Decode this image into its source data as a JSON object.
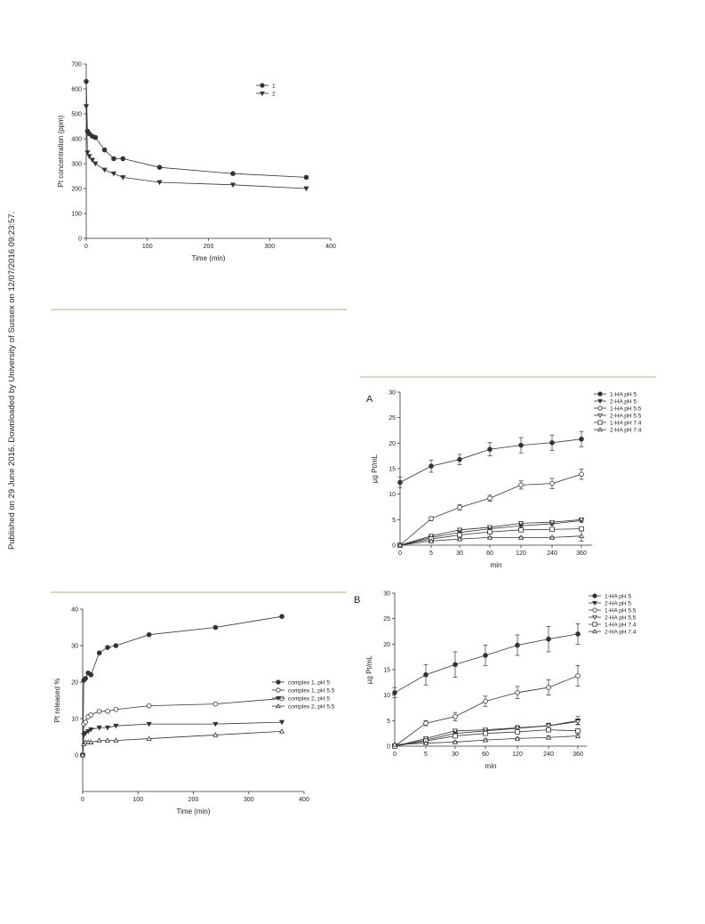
{
  "side_note": "Published on 29 June 2016. Downloaded by University of Sussex on 12/07/2016 09:23:57.",
  "colors": {
    "line": "#333333",
    "rule": "#d9d6c6"
  },
  "chart_data": [
    {
      "id": "pt-concentration",
      "type": "line",
      "xlabel": "Time (min)",
      "ylabel": "Pt concentration (ppm)",
      "xlim": [
        0,
        400
      ],
      "ylim": [
        0,
        700
      ],
      "xticks": [
        0,
        100,
        200,
        300,
        400
      ],
      "yticks": [
        0,
        100,
        200,
        300,
        400,
        500,
        600,
        700
      ],
      "legend_position": "top-right",
      "x": [
        0,
        2,
        5,
        10,
        15,
        30,
        45,
        60,
        120,
        240,
        360
      ],
      "series": [
        {
          "name": "1",
          "marker": "circle-filled",
          "values": [
            630,
            430,
            420,
            410,
            405,
            355,
            320,
            320,
            285,
            260,
            245
          ]
        },
        {
          "name": "2",
          "marker": "triangle-down-filled",
          "values": [
            530,
            345,
            330,
            315,
            300,
            275,
            260,
            245,
            225,
            215,
            200
          ]
        }
      ]
    },
    {
      "id": "pt-released",
      "type": "line",
      "xlabel": "Time (min)",
      "ylabel": "Pt released %",
      "xlim": [
        0,
        400
      ],
      "ylim": [
        -10,
        40
      ],
      "xticks": [
        0,
        100,
        200,
        300,
        400
      ],
      "yticks": [
        0,
        10,
        20,
        30,
        40
      ],
      "legend_position": "right",
      "x": [
        0,
        2,
        5,
        10,
        15,
        30,
        45,
        60,
        120,
        240,
        360
      ],
      "series": [
        {
          "name": "complex 1, pH 5",
          "marker": "circle-filled",
          "values": [
            0,
            20.5,
            21,
            22.5,
            22,
            28,
            29.5,
            30,
            33,
            35,
            38
          ]
        },
        {
          "name": "complex 1, pH 5.5",
          "marker": "circle-open",
          "values": [
            0,
            8.5,
            9,
            10.5,
            11,
            12,
            12,
            12.5,
            13.5,
            14,
            15.5
          ]
        },
        {
          "name": "complex 2, pH 5",
          "marker": "triangle-down-filled",
          "values": [
            0,
            5.5,
            6,
            6.5,
            7,
            7.5,
            7.5,
            8,
            8.5,
            8.5,
            9
          ]
        },
        {
          "name": "complex 2, pH 5.5",
          "marker": "triangle-up-open",
          "values": [
            0,
            3,
            3.5,
            3.5,
            3.5,
            4,
            4,
            4,
            4.5,
            5.5,
            6.5
          ]
        }
      ]
    },
    {
      "id": "panel-A",
      "panel_label": "A",
      "type": "line",
      "xlabel": "min",
      "ylabel": "µg Pt/mL",
      "categories": [
        "0",
        "5",
        "30",
        "60",
        "120",
        "240",
        "360"
      ],
      "ylim": [
        0,
        30
      ],
      "yticks": [
        0,
        5,
        10,
        15,
        20,
        25,
        30
      ],
      "legend_position": "top-right",
      "series": [
        {
          "name": "1-HA pH 5",
          "marker": "circle-filled",
          "values": [
            12.3,
            15.5,
            16.8,
            18.8,
            19.6,
            20.1,
            20.8
          ],
          "errors": [
            1.0,
            1.2,
            1.0,
            1.3,
            1.5,
            1.5,
            1.5
          ]
        },
        {
          "name": "2-HA pH 5",
          "marker": "triangle-down-filled",
          "values": [
            0,
            1.5,
            2.5,
            3.2,
            3.8,
            4.2,
            4.8
          ],
          "errors": [
            0.2,
            0.3,
            0.3,
            0.3,
            0.3,
            0.3,
            0.3
          ]
        },
        {
          "name": "1-HA pH 5.5",
          "marker": "circle-open",
          "values": [
            0,
            5.2,
            7.4,
            9.2,
            11.8,
            12.1,
            13.9
          ],
          "errors": [
            0.3,
            0.4,
            0.5,
            0.6,
            0.8,
            1.0,
            1.0
          ]
        },
        {
          "name": "2-HA pH 5.5",
          "marker": "triangle-down-open",
          "values": [
            0,
            1.8,
            3.0,
            3.5,
            4.3,
            4.5,
            5.0
          ],
          "errors": [
            0.2,
            0.2,
            0.2,
            0.2,
            0.3,
            0.3,
            0.3
          ]
        },
        {
          "name": "1-HA pH 7.4",
          "marker": "square-open",
          "values": [
            0,
            1.2,
            2.0,
            2.6,
            3.0,
            3.1,
            3.2
          ],
          "errors": [
            0.2,
            0.2,
            0.2,
            0.2,
            0.2,
            0.2,
            0.2
          ]
        },
        {
          "name": "2-HA pH 7.4",
          "marker": "triangle-up-open",
          "values": [
            0,
            0.8,
            1.2,
            1.5,
            1.5,
            1.5,
            1.8
          ],
          "errors": [
            0.2,
            0.2,
            0.2,
            0.2,
            0.2,
            0.2,
            1.0
          ]
        }
      ]
    },
    {
      "id": "panel-B",
      "panel_label": "B",
      "type": "line",
      "xlabel": "min",
      "ylabel": "µg Pt/mL",
      "categories": [
        "0",
        "5",
        "30",
        "60",
        "120",
        "240",
        "360"
      ],
      "ylim": [
        0,
        30
      ],
      "yticks": [
        0,
        5,
        10,
        15,
        20,
        25,
        30
      ],
      "legend_position": "top-right",
      "series": [
        {
          "name": "1-HA pH 5",
          "marker": "circle-filled",
          "values": [
            10.5,
            14.0,
            16.0,
            17.8,
            19.8,
            21.0,
            22.0
          ],
          "errors": [
            1.0,
            2.0,
            2.5,
            2.0,
            2.0,
            2.5,
            2.0
          ]
        },
        {
          "name": "2-HA pH 5",
          "marker": "triangle-down-filled",
          "values": [
            0,
            1.2,
            2.5,
            3.0,
            3.5,
            4.0,
            5.0
          ],
          "errors": [
            0.2,
            0.3,
            0.5,
            0.5,
            0.5,
            0.5,
            0.8
          ]
        },
        {
          "name": "1-HA pH 5.5",
          "marker": "circle-open",
          "values": [
            0,
            4.5,
            5.8,
            8.8,
            10.5,
            11.5,
            13.8
          ],
          "errors": [
            0.3,
            0.5,
            0.8,
            1.0,
            1.2,
            1.5,
            2.0
          ]
        },
        {
          "name": "2-HA pH 5.5",
          "marker": "triangle-down-open",
          "values": [
            0,
            1.5,
            3.0,
            3.2,
            3.6,
            4.0,
            4.8
          ],
          "errors": [
            0.2,
            0.3,
            0.3,
            0.3,
            0.4,
            0.4,
            0.5
          ]
        },
        {
          "name": "1-HA pH 7.4",
          "marker": "square-open",
          "values": [
            0,
            1.0,
            2.0,
            2.5,
            2.8,
            3.2,
            3.0
          ],
          "errors": [
            0.2,
            0.2,
            0.3,
            0.3,
            0.3,
            0.3,
            0.3
          ]
        },
        {
          "name": "2-HA pH 7.4",
          "marker": "triangle-up-open",
          "values": [
            0.3,
            0.6,
            0.8,
            1.2,
            1.5,
            1.7,
            2.0
          ],
          "errors": [
            0.2,
            0.2,
            0.2,
            0.2,
            0.2,
            0.3,
            0.3
          ]
        }
      ]
    }
  ]
}
